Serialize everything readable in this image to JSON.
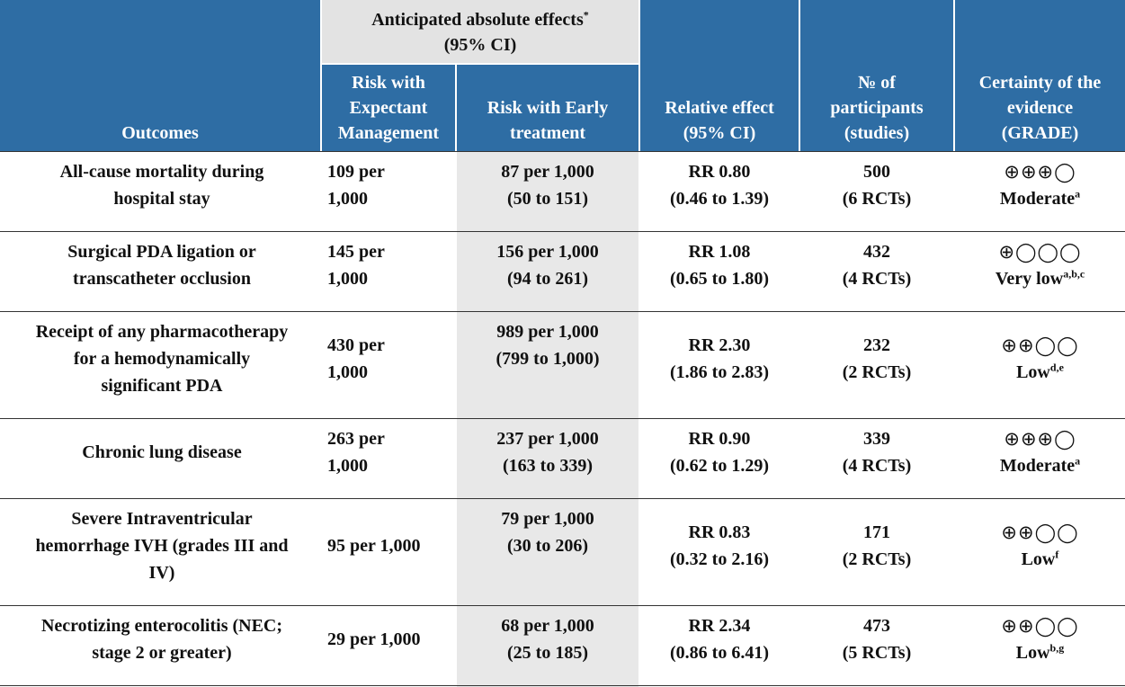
{
  "header": {
    "outcomes": "Outcomes",
    "anticipated": "Anticipated absolute effects",
    "anticipated_mark": "*",
    "anticipated_ci": "(95% CI)",
    "risk_expectant": [
      "Risk with",
      "Expectant",
      "Management"
    ],
    "risk_early": [
      "Risk with Early",
      "treatment"
    ],
    "relative": [
      "Relative effect",
      "(95% CI)"
    ],
    "participants": [
      "№ of",
      "participants",
      "(studies)"
    ],
    "certainty": [
      "Certainty of the",
      "evidence",
      "(GRADE)"
    ]
  },
  "rows": [
    {
      "outcome": [
        "All-cause mortality during",
        "hospital stay"
      ],
      "risk_expectant": [
        "109 per",
        "1,000"
      ],
      "risk_early": [
        "87 per 1,000",
        "(50 to 151)"
      ],
      "relative": [
        "RR 0.80",
        "(0.46 to 1.39)"
      ],
      "participants": [
        "500",
        "(6 RCTs)"
      ],
      "symbols": "⊕⊕⊕◯",
      "certainty": "Moderate",
      "footnotes": "a"
    },
    {
      "outcome": [
        "Surgical PDA ligation or",
        "transcatheter occlusion"
      ],
      "risk_expectant": [
        "145 per",
        "1,000"
      ],
      "risk_early": [
        "156 per 1,000",
        "(94 to 261)"
      ],
      "relative": [
        "RR 1.08",
        "(0.65 to 1.80)"
      ],
      "participants": [
        "432",
        "(4 RCTs)"
      ],
      "symbols": "⊕◯◯◯",
      "certainty": "Very low",
      "footnotes": "a,b,c"
    },
    {
      "outcome": [
        "Receipt of any pharmacotherapy",
        "for a hemodynamically",
        "significant PDA"
      ],
      "risk_expectant": [
        "430 per",
        "1,000"
      ],
      "risk_early": [
        "989 per 1,000",
        "(799 to 1,000)"
      ],
      "relative": [
        "RR 2.30",
        "(1.86 to 2.83)"
      ],
      "participants": [
        "232",
        "(2 RCTs)"
      ],
      "symbols": "⊕⊕◯◯",
      "certainty": "Low",
      "footnotes": "d,e"
    },
    {
      "outcome": [
        "Chronic lung disease"
      ],
      "risk_expectant": [
        "263 per",
        "1,000"
      ],
      "risk_early": [
        "237 per 1,000",
        "(163 to 339)"
      ],
      "relative": [
        "RR 0.90",
        "(0.62 to 1.29)"
      ],
      "participants": [
        "339",
        "(4 RCTs)"
      ],
      "symbols": "⊕⊕⊕◯",
      "certainty": "Moderate",
      "footnotes": "a"
    },
    {
      "outcome": [
        "Severe Intraventricular",
        "hemorrhage IVH (grades III and",
        "IV)"
      ],
      "risk_expectant": [
        "95 per 1,000"
      ],
      "risk_early": [
        "79 per 1,000",
        "(30 to 206)"
      ],
      "relative": [
        "RR 0.83",
        "(0.32 to 2.16)"
      ],
      "participants": [
        "171",
        "(2 RCTs)"
      ],
      "symbols": "⊕⊕◯◯",
      "certainty": "Low",
      "footnotes": "f"
    },
    {
      "outcome": [
        "Necrotizing enterocolitis (NEC;",
        "stage 2 or greater)"
      ],
      "risk_expectant": [
        "29 per 1,000"
      ],
      "risk_early": [
        "68 per 1,000",
        "(25 to 185)"
      ],
      "relative": [
        "RR 2.34",
        "(0.86 to 6.41)"
      ],
      "participants": [
        "473",
        "(5 RCTs)"
      ],
      "symbols": "⊕⊕◯◯",
      "certainty": "Low",
      "footnotes": "b,g"
    }
  ],
  "colors": {
    "header_blue": "#2e6da4",
    "header_gray": "#e3e3e3",
    "column_shade": "#e8e8e8",
    "rule": "#333333"
  }
}
